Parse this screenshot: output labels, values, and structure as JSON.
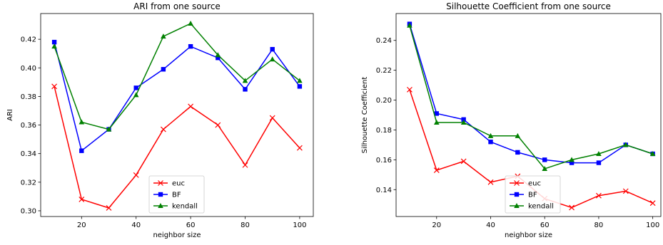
{
  "chart_data": [
    {
      "type": "line",
      "title": "ARI from one source",
      "xlabel": "neighbor size",
      "ylabel": "ARI",
      "x": [
        10,
        20,
        30,
        40,
        50,
        60,
        70,
        80,
        90,
        100
      ],
      "xlim": [
        5,
        105
      ],
      "ylim": [
        0.296,
        0.438
      ],
      "xticks": [
        20,
        40,
        60,
        80,
        100
      ],
      "yticks": [
        0.3,
        0.32,
        0.34,
        0.36,
        0.38,
        0.4,
        0.42
      ],
      "ytick_labels": [
        "0.30",
        "0.32",
        "0.34",
        "0.36",
        "0.38",
        "0.40",
        "0.42"
      ],
      "legend": "lower-center",
      "series": [
        {
          "name": "euc",
          "color": "#ff0000",
          "marker": "x",
          "values": [
            0.387,
            0.308,
            0.302,
            0.325,
            0.357,
            0.373,
            0.36,
            0.332,
            0.365,
            0.344
          ]
        },
        {
          "name": "BF",
          "color": "#0000ff",
          "marker": "square",
          "values": [
            0.418,
            0.342,
            0.357,
            0.386,
            0.399,
            0.415,
            0.407,
            0.385,
            0.413,
            0.387
          ]
        },
        {
          "name": "kendall",
          "color": "#008000",
          "marker": "triangle",
          "values": [
            0.415,
            0.362,
            0.357,
            0.381,
            0.422,
            0.431,
            0.409,
            0.391,
            0.406,
            0.391
          ]
        }
      ]
    },
    {
      "type": "line",
      "title": "Silhouette Coefficient from one source",
      "xlabel": "neighbor size",
      "ylabel": "Silhouette Coefficient",
      "x": [
        10,
        20,
        30,
        40,
        50,
        60,
        70,
        80,
        90,
        100
      ],
      "xlim": [
        5,
        103
      ],
      "ylim": [
        0.122,
        0.258
      ],
      "xticks": [
        20,
        40,
        60,
        80,
        100
      ],
      "yticks": [
        0.14,
        0.16,
        0.18,
        0.2,
        0.22,
        0.24
      ],
      "ytick_labels": [
        "0.14",
        "0.16",
        "0.18",
        "0.20",
        "0.22",
        "0.24"
      ],
      "legend": "lower-center",
      "series": [
        {
          "name": "euc",
          "color": "#ff0000",
          "marker": "x",
          "values": [
            0.207,
            0.153,
            0.159,
            0.145,
            0.149,
            0.134,
            0.128,
            0.136,
            0.139,
            0.131
          ]
        },
        {
          "name": "BF",
          "color": "#0000ff",
          "marker": "square",
          "values": [
            0.251,
            0.191,
            0.187,
            0.172,
            0.165,
            0.16,
            0.158,
            0.158,
            0.17,
            0.164
          ]
        },
        {
          "name": "kendall",
          "color": "#008000",
          "marker": "triangle",
          "values": [
            0.25,
            0.185,
            0.185,
            0.176,
            0.176,
            0.154,
            0.16,
            0.164,
            0.17,
            0.164
          ]
        }
      ]
    }
  ]
}
